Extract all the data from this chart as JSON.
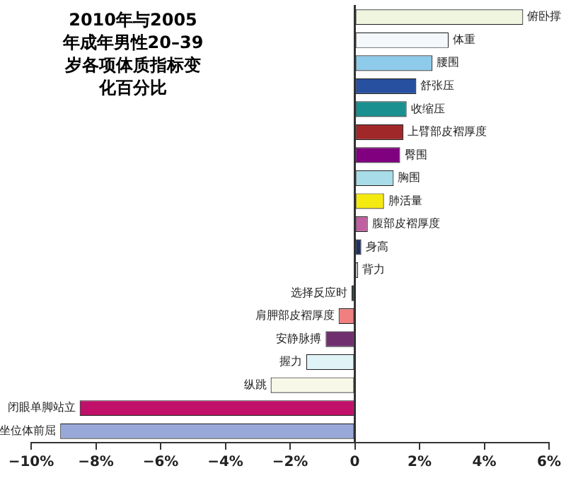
{
  "chart_data": {
    "type": "bar",
    "orientation": "horizontal",
    "title": "2010年与2005年成年男性20–39岁各项体质指标变化百分比",
    "categories": [
      "俯卧撑",
      "体重",
      "腰围",
      "舒张压",
      "收缩压",
      "上臂部皮褶厚度",
      "臀围",
      "胸围",
      "肺活量",
      "腹部皮褶厚度",
      "身高",
      "背力",
      "选择反应时",
      "肩胛部皮褶厚度",
      "安静脉搏",
      "握力",
      "纵跳",
      "闭眼单脚站立",
      "坐位体前屈"
    ],
    "values": [
      5.2,
      2.9,
      2.4,
      1.9,
      1.6,
      1.5,
      1.4,
      1.2,
      0.9,
      0.4,
      0.2,
      0.1,
      -0.1,
      -0.5,
      -0.9,
      -1.5,
      -2.6,
      -8.5,
      -9.1
    ],
    "colors": [
      "#f0f5e0",
      "#f4f8fb",
      "#8ecbea",
      "#2850a0",
      "#1a9090",
      "#a02828",
      "#800080",
      "#a8dce8",
      "#f5ea10",
      "#c060a0",
      "#203060",
      "#ffffff",
      "#203030",
      "#f08080",
      "#703070",
      "#e0f4f8",
      "#f8f8e8",
      "#c0106a",
      "#98a8d8"
    ],
    "xlim": [
      -10,
      6
    ],
    "xticks": [
      {
        "value": -10,
        "label": "−10%"
      },
      {
        "value": -8,
        "label": "−8%"
      },
      {
        "value": -6,
        "label": "−6%"
      },
      {
        "value": -4,
        "label": "−4%"
      },
      {
        "value": -2,
        "label": "−2%"
      },
      {
        "value": 0,
        "label": "0"
      },
      {
        "value": 2,
        "label": "2%"
      },
      {
        "value": 4,
        "label": "4%"
      },
      {
        "value": 6,
        "label": "6%"
      }
    ],
    "grid": false,
    "legend": false
  }
}
